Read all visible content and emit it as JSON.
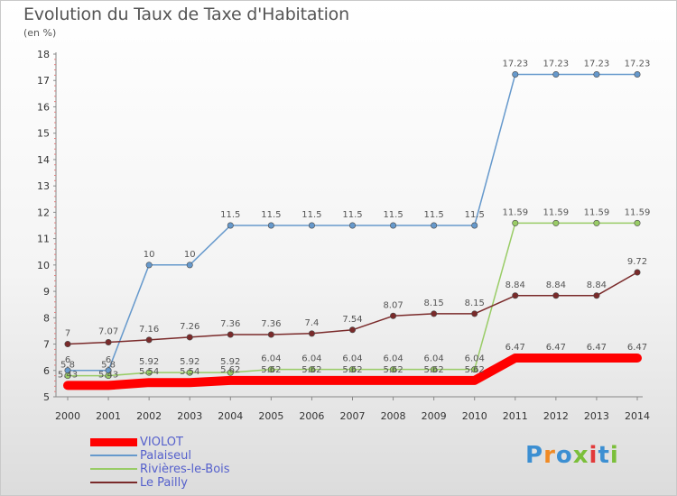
{
  "chart_data": {
    "type": "line",
    "title": "Evolution du Taux de Taxe d'Habitation",
    "subtitle": "(en %)",
    "x": [
      "2000",
      "2001",
      "2002",
      "2003",
      "2004",
      "2005",
      "2006",
      "2007",
      "2008",
      "2009",
      "2010",
      "2011",
      "2012",
      "2013",
      "2014"
    ],
    "ylim": [
      5,
      18
    ],
    "yticks": [
      "5",
      "6",
      "7",
      "8",
      "9",
      "10",
      "11",
      "12",
      "13",
      "14",
      "15",
      "16",
      "17",
      "18"
    ],
    "grid": false,
    "legend_position": "bottom-left",
    "series": [
      {
        "name": "VIOLOT",
        "color": "#ff0000",
        "values": [
          5.43,
          5.43,
          5.54,
          5.54,
          5.62,
          5.62,
          5.62,
          5.62,
          5.62,
          5.62,
          5.62,
          6.47,
          6.47,
          6.47,
          6.47
        ],
        "labels": [
          "5.43",
          "5.43",
          "5.54",
          "5.54",
          "5.62",
          "5.62",
          "5.62",
          "5.62",
          "5.62",
          "5.62",
          "5.62",
          "6.47",
          "6.47",
          "6.47",
          "6.47"
        ]
      },
      {
        "name": "Palaiseul",
        "color": "#6699cc",
        "values": [
          6,
          6,
          10,
          10,
          11.5,
          11.5,
          11.5,
          11.5,
          11.5,
          11.5,
          11.5,
          17.23,
          17.23,
          17.23,
          17.23
        ],
        "labels": [
          "6",
          "6",
          "10",
          "10",
          "11.5",
          "11.5",
          "11.5",
          "11.5",
          "11.5",
          "11.5",
          "11.5",
          "17.23",
          "17.23",
          "17.23",
          "17.23"
        ]
      },
      {
        "name": "Rivières-le-Bois",
        "color": "#99cc66",
        "values": [
          5.8,
          5.8,
          5.92,
          5.92,
          5.92,
          6.04,
          6.04,
          6.04,
          6.04,
          6.04,
          6.04,
          11.59,
          11.59,
          11.59,
          11.59
        ],
        "labels": [
          "5.8",
          "5.8",
          "5.92",
          "5.92",
          "5.92",
          "6.04",
          "6.04",
          "6.04",
          "6.04",
          "6.04",
          "6.04",
          "11.59",
          "11.59",
          "11.59",
          "11.59"
        ]
      },
      {
        "name": "Le Pailly",
        "color": "#7a2a2a",
        "values": [
          7,
          7.07,
          7.16,
          7.26,
          7.36,
          7.36,
          7.4,
          7.54,
          8.07,
          8.15,
          8.15,
          8.84,
          8.84,
          8.84,
          9.72
        ],
        "labels": [
          "7",
          "7.07",
          "7.16",
          "7.26",
          "7.36",
          "7.36",
          "7.4",
          "7.54",
          "8.07",
          "8.15",
          "8.15",
          "8.84",
          "8.84",
          "8.84",
          "9.72"
        ]
      }
    ]
  },
  "brand": {
    "letters": [
      "P",
      "r",
      "o",
      "x",
      "i",
      "t",
      "i"
    ]
  }
}
